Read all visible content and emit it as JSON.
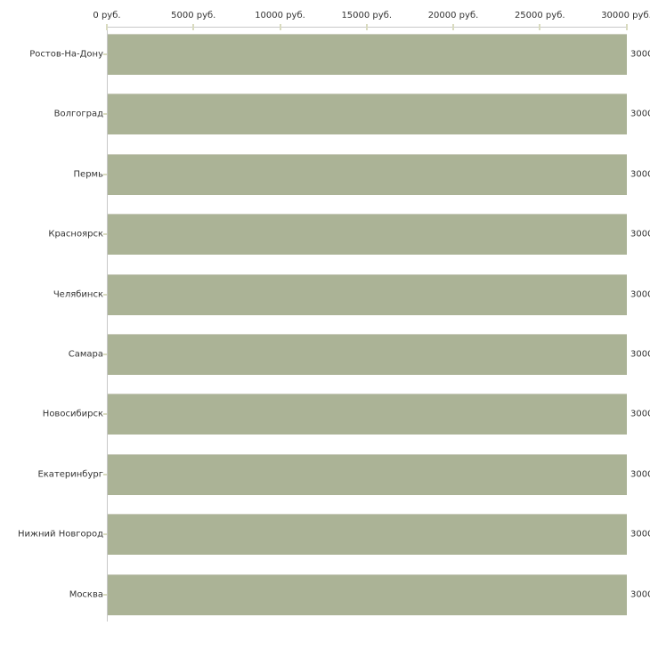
{
  "chart_data": {
    "type": "bar",
    "orientation": "horizontal",
    "title": "",
    "xlabel": "",
    "ylabel": "",
    "grid": false,
    "legend": false,
    "categories": [
      "Ростов-На-Дону",
      "Волгоград",
      "Пермь",
      "Красноярск",
      "Челябинск",
      "Самара",
      "Новосибирск",
      "Екатеринбург",
      "Нижний Новгород",
      "Москва"
    ],
    "values": [
      30000,
      30000,
      30000,
      30000,
      30000,
      30000,
      30000,
      30000,
      30000,
      30000
    ],
    "x_ticks": [
      "0 руб.",
      "5000 руб.",
      "10000 руб.",
      "15000 руб.",
      "20000 руб.",
      "25000 руб.",
      "30000 руб."
    ],
    "x_tick_values": [
      0,
      5000,
      10000,
      15000,
      20000,
      25000,
      30000
    ],
    "xlim": [
      0,
      30000
    ],
    "colors": {
      "bar": "#abb396",
      "bar_border": "#cbcdbe",
      "axis": "#c8c8c8",
      "tick": "#d9dbbf",
      "text": "#333333",
      "background": "#ffffff"
    }
  }
}
